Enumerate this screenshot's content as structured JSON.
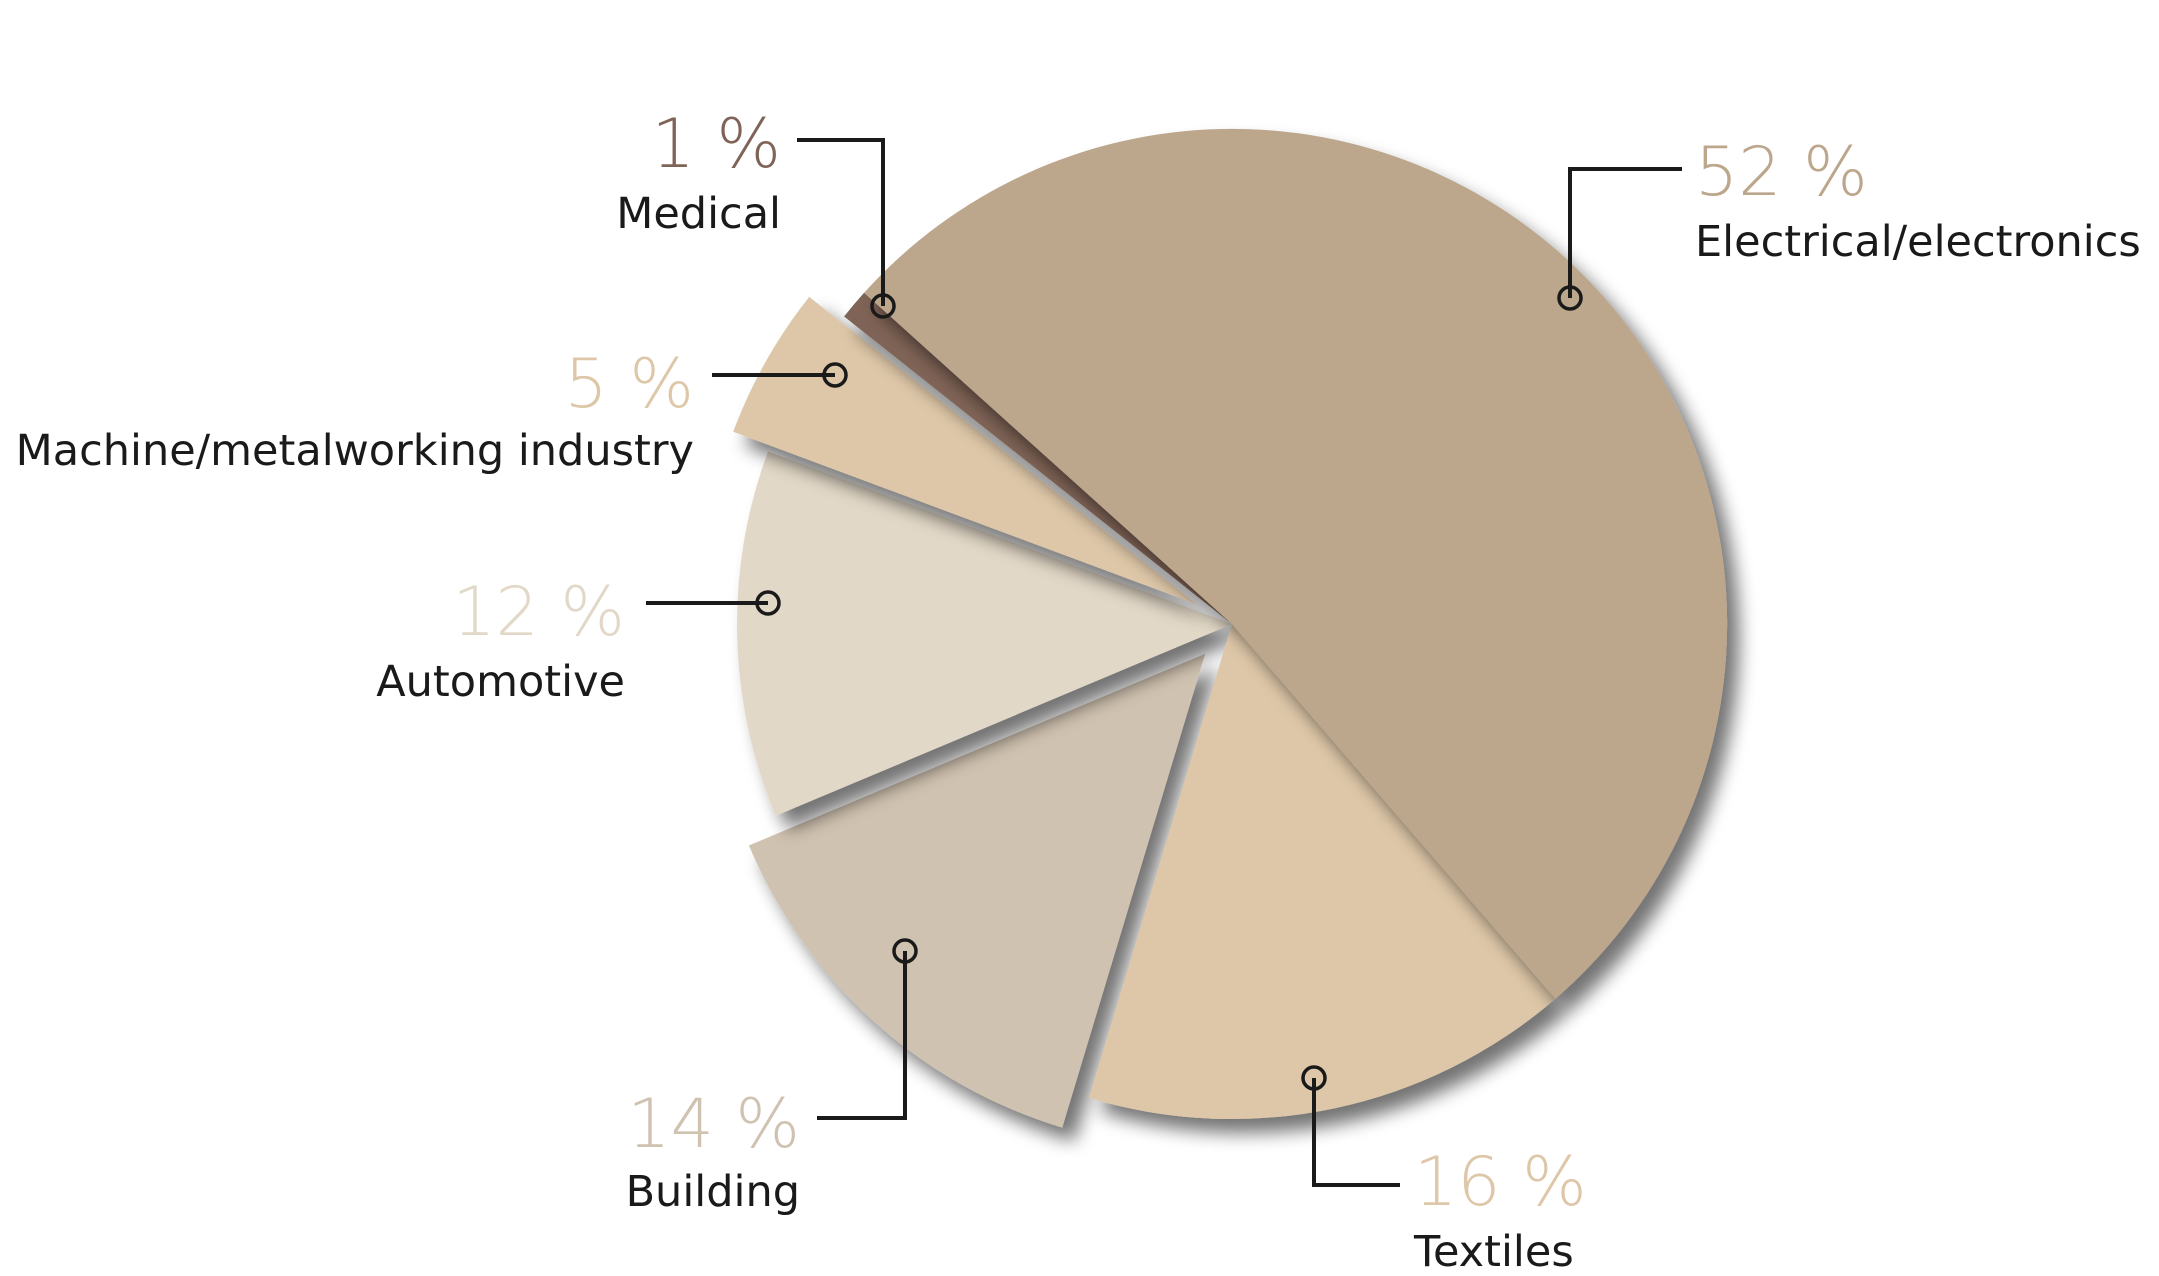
{
  "chart_data": {
    "type": "pie",
    "slices": [
      {
        "label": "Electrical/electronics",
        "value": 52,
        "value_label": "52 %",
        "color": "#bca68c",
        "exploded": false
      },
      {
        "label": "Textiles",
        "value": 16,
        "value_label": "16 %",
        "color": "#dec7a8",
        "exploded": false
      },
      {
        "label": "Building",
        "value": 14,
        "value_label": "14 %",
        "color": "#d0c2b0",
        "exploded": true
      },
      {
        "label": "Automotive",
        "value": 12,
        "value_label": "12 %",
        "color": "#e2d8c7",
        "exploded": false
      },
      {
        "label": "Machine/metalworking industry",
        "value": 5,
        "value_label": "5 %",
        "color": "#dec7a8",
        "exploded": true
      },
      {
        "label": "Medical",
        "value": 1,
        "value_label": "1 %",
        "color": "#7f6357",
        "exploded": false
      }
    ],
    "legend": "none",
    "labels": "outside with leader lines"
  }
}
